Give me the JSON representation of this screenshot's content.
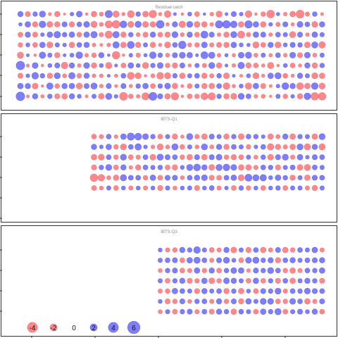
{
  "chart_data": [
    {
      "type": "scatter",
      "title": "Residual catch",
      "n_years": 42,
      "n_ages": 9,
      "first_year_index": 0,
      "last_year_index": 41,
      "residuals": [
        [
          1.2,
          -1.1,
          0.9,
          1.5,
          -0.4,
          -1.2,
          -0.2,
          0.6,
          1.4,
          -0.3,
          -1.3,
          -0.7,
          2.1,
          -1.6,
          -0.5,
          -1.9,
          0.9,
          -1.4,
          -2.2,
          -0.5,
          -1.8,
          0.4,
          -0.3,
          0.7,
          -1.0,
          0.3,
          -0.6,
          -1.5,
          0.4,
          1.1,
          0.6,
          -1.8,
          -0.3,
          -0.9,
          -2.4,
          0.5,
          -0.6,
          -1.3,
          -2.6,
          -0.8,
          0.9,
          -0.4
        ],
        [
          0.5,
          1.3,
          -1.2,
          1.8,
          -1.4,
          -1.2,
          1.1,
          -1.2,
          1.0,
          1.4,
          -1.6,
          -0.7,
          -2.1,
          -2.4,
          1.9,
          -1.5,
          1.6,
          -1.4,
          -1.3,
          2.4,
          -0.5,
          1.2,
          -1.7,
          1.5,
          -1.4,
          -1.3,
          -0.6,
          2.2,
          2.3,
          1.8,
          -1.3,
          2.2,
          1.3,
          -1.3,
          0.6,
          -0.8,
          1.1,
          -0.5,
          1.4,
          1.0,
          -1.4,
          1.2
        ],
        [
          -1.0,
          1.2,
          -1.1,
          0.6,
          1.3,
          1.8,
          0.9,
          1.3,
          -1.0,
          1.3,
          1.7,
          -0.8,
          -2.1,
          1.7,
          -1.2,
          0.9,
          -0.7,
          -1.1,
          1.2,
          -1.0,
          -1.2,
          1.5,
          -0.7,
          1.2,
          -1.0,
          2.0,
          1.1,
          -0.6,
          -1.2,
          1.6,
          -2.0,
          -0.8,
          1.3,
          1.1,
          -0.6,
          1.0,
          0.8,
          -1.6,
          1.1,
          -0.6,
          1.3,
          0.8
        ],
        [
          -0.9,
          0.7,
          -1.0,
          1.3,
          -1.5,
          0.8,
          0.6,
          -1.3,
          1.0,
          1.2,
          -0.6,
          -0.4,
          -0.6,
          1.7,
          -1.3,
          2.0,
          -1.2,
          0.8,
          -1.2,
          -0.5,
          -1.5,
          1.0,
          2.3,
          -0.7,
          -0.9,
          1.4,
          -0.8,
          -1.1,
          -1.2,
          1.3,
          0.7,
          0.5,
          -1.6,
          -1.0,
          1.2,
          -1.5,
          0.7,
          1.1,
          0.9,
          -1.4,
          1.6,
          -1.7
        ],
        [
          -1.6,
          0.4,
          -0.3,
          1.7,
          0.8,
          -1.2,
          0.4,
          0.7,
          1.8,
          -0.6,
          -0.9,
          1.2,
          0.3,
          -2.3,
          -0.3,
          0.6,
          -0.8,
          0.5,
          1.8,
          0.9,
          -0.7,
          1.1,
          1.5,
          1.3,
          0.4,
          2.0,
          1.6,
          -0.6,
          0.5,
          -0.5,
          1.4,
          1.6,
          -0.7,
          0.8,
          -0.5,
          1.0,
          -0.6,
          1.4,
          -1.1,
          1.4,
          -0.7,
          0.8
        ],
        [
          2.9,
          -0.4,
          1.4,
          -0.3,
          0.7,
          1.1,
          -1.8,
          1.2,
          -0.6,
          1.4,
          -1.2,
          0.7,
          -1.6,
          0.4,
          -1.0,
          1.3,
          0.7,
          -1.5,
          0.9,
          1.4,
          -0.9,
          -1.2,
          1.1,
          -0.5,
          0.8,
          -0.8,
          1.5,
          -1.2,
          0.4,
          -0.6,
          1.7,
          -1.2,
          -1.0,
          -0.5,
          -1.6,
          -0.3,
          0.7,
          -1.0,
          -0.5,
          1.2,
          -1.2,
          0.9
        ],
        [
          -1.1,
          0.6,
          1.8,
          0.9,
          -1.2,
          1.5,
          -0.7,
          1.7,
          -0.9,
          1.2,
          -0.6,
          -0.6,
          0.4,
          -0.5,
          1.0,
          -2.0,
          -1.5,
          -0.3,
          -0.7,
          -1.9,
          -1.6,
          0.9,
          -1.3,
          0.8,
          1.0,
          -1.2,
          -0.8,
          0.9,
          -1.4,
          0.4,
          -0.4,
          0.7,
          -1.5,
          -0.5,
          1.3,
          1.6,
          -1.0,
          -0.5,
          1.2,
          0.8,
          -1.5,
          -1.3
        ],
        [
          1.3,
          1.2,
          -1.4,
          -0.3,
          1.7,
          -0.9,
          1.2,
          1.3,
          -1.5,
          1.1,
          1.6,
          -0.6,
          1.1,
          -0.4,
          1.1,
          -0.5,
          0.9,
          1.3,
          -1.0,
          0.9,
          1.4,
          -1.3,
          -0.4,
          -1.0,
          0.8,
          -1.2,
          -1.3,
          1.0,
          -1.8,
          -0.5,
          0.7,
          -1.7,
          1.3,
          -1.1,
          -0.4,
          0.6,
          1.9,
          1.2,
          -1.9,
          -1.3,
          1.8,
          -1.5
        ],
        [
          3.0,
          -0.4,
          1.2,
          -0.5,
          0.9,
          -1.1,
          -1.3,
          1.2,
          0.7,
          -0.4,
          0.8,
          -1.4,
          1.6,
          0.6,
          -2.5,
          -0.9,
          -0.6,
          -2.1,
          2.6,
          1.1,
          -1.3,
          -2.2,
          -0.3,
          -1.0,
          -0.9,
          -1.9,
          -2.1,
          0.9,
          -1.2,
          -1.5,
          1.5,
          1.0,
          -0.6,
          -0.7,
          -0.3,
          0.8,
          -0.9,
          0.6,
          -1.2,
          1.8,
          -2.3,
          -2.3
        ]
      ]
    },
    {
      "type": "scatter",
      "title": "IBTS-Q1",
      "n_years": 42,
      "n_ages": 6,
      "first_year_index": 10,
      "last_year_index": 41,
      "residuals": [
        [
          -1.0,
          -0.8,
          1.0,
          -0.6,
          1.3,
          2.1,
          1.9,
          1.4,
          0.9,
          -1.0,
          0.8,
          -1.2,
          -0.5,
          1.6,
          -0.9,
          -1.3,
          1.1,
          0.8,
          -1.2,
          0.9,
          -1.4,
          1.0,
          0.9,
          0.6,
          -1.3,
          -0.8,
          1.2,
          -1.3,
          0.9,
          0.8,
          -1.3,
          1.5
        ],
        [
          1.2,
          0.6,
          1.3,
          -0.9,
          -1.5,
          1.0,
          1.7,
          0.6,
          -0.6,
          -1.5,
          -0.7,
          1.6,
          -1.0,
          0.8,
          -0.7,
          1.5,
          -0.7,
          1.2,
          -1.2,
          1.0,
          0.8,
          -0.9,
          0.6,
          1.0,
          -1.7,
          -1.2,
          -0.8,
          -1.3,
          1.5,
          -1.6,
          1.2,
          -1.6
        ],
        [
          -1.3,
          -1.5,
          1.0,
          -0.9,
          1.5,
          -1.0,
          -0.8,
          1.0,
          -1.4,
          1.6,
          1.1,
          1.0,
          -0.9,
          -1.3,
          1.1,
          -1.3,
          1.1,
          1.4,
          -0.9,
          -1.2,
          -1.0,
          0.8,
          -0.7,
          0.9,
          -1.4,
          1.1,
          1.5,
          -0.8,
          1.3,
          0.6,
          1.1,
          1.0
        ],
        [
          -1.1,
          0.9,
          1.5,
          -1.0,
          1.2,
          -0.6,
          -1.2,
          1.0,
          0.8,
          0.9,
          -1.0,
          -1.2,
          0.7,
          1.6,
          1.9,
          1.2,
          -1.4,
          1.6,
          1.8,
          1.4,
          -1.3,
          -1.3,
          -0.8,
          1.0,
          0.9,
          -1.1,
          0.8,
          1.0,
          -1.4,
          -1.6,
          1.0,
          0.8
        ],
        [
          -2.3,
          -1.8,
          -0.7,
          -1.3,
          1.6,
          1.0,
          1.0,
          -0.9,
          1.3,
          -1.0,
          1.1,
          1.1,
          -0.7,
          1.0,
          1.2,
          1.4,
          -1.1,
          -1.0,
          1.0,
          1.3,
          -1.5,
          2.0,
          1.6,
          1.7,
          0.7,
          1.3,
          0.9,
          -1.2,
          0.8,
          -1.3,
          1.1,
          1.0
        ],
        [
          -1.0,
          -0.7,
          0.8,
          -1.0,
          0.7,
          -0.8,
          0.7,
          -0.8,
          0.7,
          -1.1,
          0.8,
          -0.7,
          0.7,
          0.8,
          -1.1,
          0.7,
          1.0,
          -0.8,
          0.6,
          -1.0,
          0.9,
          -0.9,
          0.7,
          -1.0,
          0.7,
          0.9,
          -1.0,
          0.8,
          0.8,
          -0.8,
          -1.2,
          0.8
        ]
      ]
    },
    {
      "type": "scatter",
      "title": "IBTS-Q3",
      "n_years": 42,
      "n_ages": 7,
      "first_year_index": 19,
      "last_year_index": 41,
      "residuals": [
        [
          0.7,
          -0.8,
          -0.9,
          1.2,
          0.9,
          1.8,
          0.8,
          -1.0,
          -0.8,
          1.2,
          -1.4,
          0.8,
          -1.2,
          1.0,
          -1.3,
          -0.8,
          1.1,
          -1.3,
          -0.9,
          1.0,
          0.8,
          1.3,
          -0.8
        ],
        [
          0.8,
          1.0,
          1.1,
          -1.0,
          1.3,
          1.6,
          1.0,
          -0.8,
          1.1,
          1.5,
          0.7,
          -1.0,
          1.4,
          1.6,
          0.9,
          1.2,
          -1.2,
          1.0,
          1.2,
          0.8,
          1.0,
          1.1,
          1.2
        ],
        [
          -0.7,
          0.9,
          1.1,
          -1.0,
          -0.8,
          1.3,
          -0.9,
          1.2,
          -1.0,
          0.9,
          1.4,
          1.3,
          -0.6,
          1.1,
          0.9,
          1.5,
          1.0,
          -0.9,
          -1.3,
          -0.8,
          1.0,
          0.9,
          1.3
        ],
        [
          0.8,
          -1.0,
          0.9,
          1.2,
          -1.1,
          -0.9,
          1.3,
          -1.4,
          -0.9,
          1.4,
          1.2,
          0.8,
          -1.0,
          1.3,
          -1.0,
          0.9,
          -1.1,
          1.0,
          -1.3,
          0.8,
          1.2,
          0.9,
          -1.1
        ],
        [
          -0.8,
          -0.9,
          1.3,
          1.0,
          0.8,
          -1.1,
          1.2,
          0.8,
          1.0,
          -1.2,
          0.9,
          -1.3,
          0.7,
          -1.0,
          1.1,
          0.9,
          1.5,
          -0.8,
          1.0,
          0.9,
          1.4,
          1.1,
          1.0
        ],
        [
          0.7,
          -1.1,
          -0.9,
          1.1,
          -0.7,
          0.9,
          1.0,
          -0.8,
          1.2,
          -0.9,
          1.1,
          -1.2,
          1.3,
          0.8,
          1.5,
          1.4,
          -1.0,
          -0.9,
          1.4,
          1.0,
          -1.3,
          -0.8,
          1.1
        ],
        [
          -0.7,
          0.8,
          -1.0,
          0.9,
          1.1,
          -0.8,
          1.0,
          -1.1,
          1.2,
          0.9,
          -1.3,
          1.0,
          0.8,
          -1.0,
          1.3,
          0.9,
          1.6,
          -1.0,
          0.8,
          1.1,
          0.7,
          1.2,
          -1.0
        ]
      ]
    }
  ],
  "legend": {
    "items": [
      {
        "label": "-4",
        "value": -4
      },
      {
        "label": "-2",
        "value": -2
      },
      {
        "label": "0",
        "value": 0
      },
      {
        "label": "2",
        "value": 2
      },
      {
        "label": "4",
        "value": 4
      },
      {
        "label": "6",
        "value": 6
      }
    ]
  },
  "colors": {
    "negative": "#ff5a5f",
    "positive": "#4c4cff",
    "negative_stroke": "#e23a3f",
    "positive_stroke": "#2222dd",
    "frame": "#333333",
    "title": "#8a8a8a"
  }
}
